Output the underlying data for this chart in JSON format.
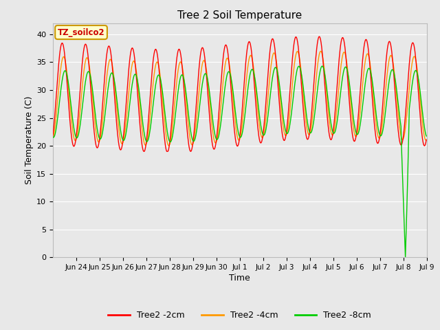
{
  "title": "Tree 2 Soil Temperature",
  "xlabel": "Time",
  "ylabel": "Soil Temperature (C)",
  "series_labels": [
    "Tree2 -2cm",
    "Tree2 -4cm",
    "Tree2 -8cm"
  ],
  "series_colors": [
    "#ff0000",
    "#ff9900",
    "#00cc00"
  ],
  "ylim": [
    0,
    42
  ],
  "yticks": [
    0,
    5,
    10,
    15,
    20,
    25,
    30,
    35,
    40
  ],
  "bg_color": "#e8e8e8",
  "plot_bg_color": "#e8e8e8",
  "grid_color": "#ffffff",
  "xtick_labels": [
    "Jun 24",
    "Jun 25",
    "Jun 26",
    "Jun 27",
    "Jun 28",
    "Jun 29",
    "Jun 30",
    "Jul 1",
    "Jul 2",
    "Jul 3",
    "Jul 4",
    "Jul 5",
    "Jul 6",
    "Jul 7",
    "Jul 8",
    "Jul 9"
  ],
  "xtick_positions_days": [
    1,
    2,
    3,
    4,
    5,
    6,
    7,
    8,
    9,
    10,
    11,
    12,
    13,
    14,
    15,
    16
  ],
  "annotation_text": "TZ_soilco2",
  "annotation_bg": "#ffffcc",
  "annotation_edge": "#cc9900",
  "annotation_color": "#cc0000",
  "linewidth": 1.0
}
